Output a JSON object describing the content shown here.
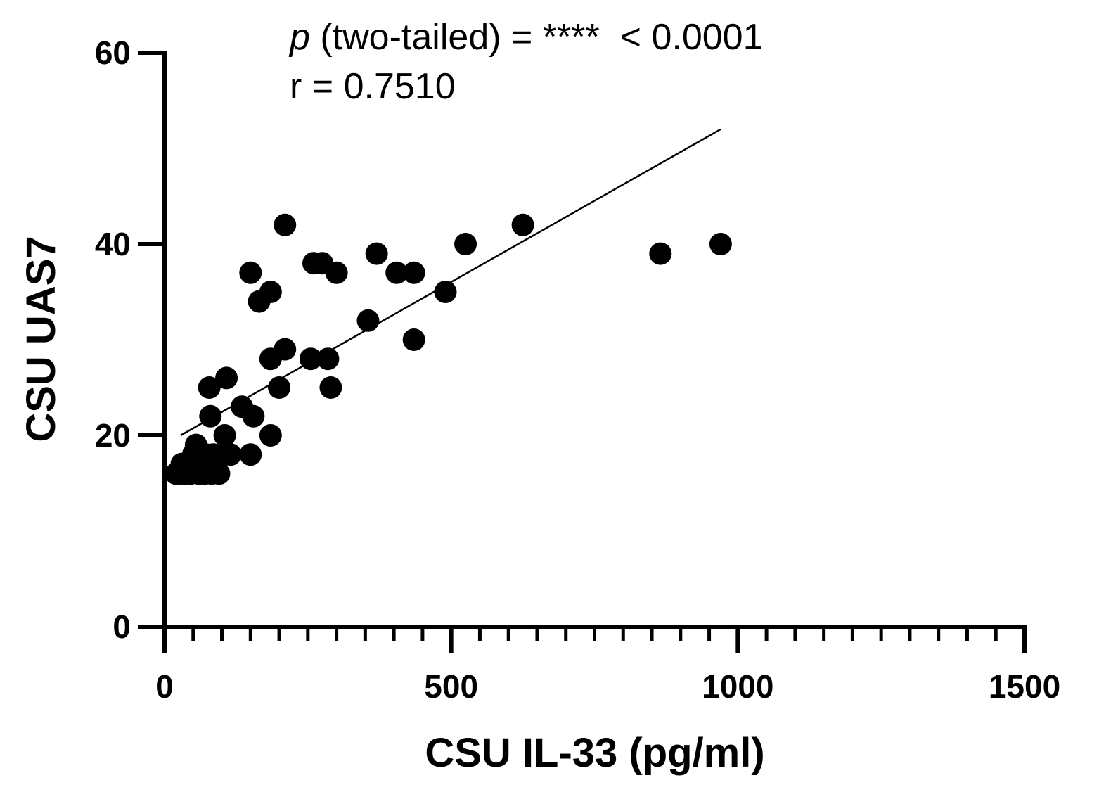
{
  "chart_data": {
    "type": "scatter",
    "title": "",
    "xlabel": "CSU IL-33 (pg/ml)",
    "ylabel": "CSU UAS7",
    "xlim": [
      0,
      1500
    ],
    "ylim": [
      0,
      60
    ],
    "x_ticks": [
      0,
      500,
      1000,
      1500
    ],
    "x_tick_labels": [
      "0",
      "500",
      "1000",
      "1500"
    ],
    "x_minor_step": 50,
    "y_ticks": [
      0,
      20,
      40,
      60
    ],
    "y_tick_labels": [
      "0",
      "20",
      "40",
      "60"
    ],
    "grid": false,
    "annotations": {
      "p_symbol": "p",
      "p_rest": " (two-tailed) = ****  < 0.0001",
      "r_text": "r = 0.7510"
    },
    "regression_line": {
      "x": [
        28,
        970
      ],
      "y": [
        20.0,
        52.0
      ]
    },
    "points": [
      {
        "x": 20,
        "y": 16
      },
      {
        "x": 25,
        "y": 16
      },
      {
        "x": 30,
        "y": 17
      },
      {
        "x": 35,
        "y": 16
      },
      {
        "x": 40,
        "y": 17
      },
      {
        "x": 45,
        "y": 16
      },
      {
        "x": 50,
        "y": 18
      },
      {
        "x": 55,
        "y": 17
      },
      {
        "x": 55,
        "y": 19
      },
      {
        "x": 60,
        "y": 16
      },
      {
        "x": 62,
        "y": 18
      },
      {
        "x": 65,
        "y": 17
      },
      {
        "x": 70,
        "y": 16
      },
      {
        "x": 72,
        "y": 18
      },
      {
        "x": 75,
        "y": 17
      },
      {
        "x": 78,
        "y": 25
      },
      {
        "x": 80,
        "y": 22
      },
      {
        "x": 82,
        "y": 16
      },
      {
        "x": 85,
        "y": 18
      },
      {
        "x": 90,
        "y": 17
      },
      {
        "x": 95,
        "y": 16
      },
      {
        "x": 100,
        "y": 18
      },
      {
        "x": 105,
        "y": 20
      },
      {
        "x": 108,
        "y": 26
      },
      {
        "x": 115,
        "y": 18
      },
      {
        "x": 135,
        "y": 23
      },
      {
        "x": 150,
        "y": 37
      },
      {
        "x": 150,
        "y": 18
      },
      {
        "x": 155,
        "y": 22
      },
      {
        "x": 165,
        "y": 34
      },
      {
        "x": 185,
        "y": 35
      },
      {
        "x": 185,
        "y": 28
      },
      {
        "x": 185,
        "y": 20
      },
      {
        "x": 200,
        "y": 25
      },
      {
        "x": 210,
        "y": 29
      },
      {
        "x": 210,
        "y": 42
      },
      {
        "x": 255,
        "y": 28
      },
      {
        "x": 260,
        "y": 38
      },
      {
        "x": 275,
        "y": 38
      },
      {
        "x": 285,
        "y": 28
      },
      {
        "x": 290,
        "y": 25
      },
      {
        "x": 300,
        "y": 37
      },
      {
        "x": 355,
        "y": 32
      },
      {
        "x": 370,
        "y": 39
      },
      {
        "x": 405,
        "y": 37
      },
      {
        "x": 435,
        "y": 37
      },
      {
        "x": 435,
        "y": 30
      },
      {
        "x": 490,
        "y": 35
      },
      {
        "x": 525,
        "y": 40
      },
      {
        "x": 625,
        "y": 42
      },
      {
        "x": 865,
        "y": 39
      },
      {
        "x": 970,
        "y": 40
      }
    ]
  }
}
